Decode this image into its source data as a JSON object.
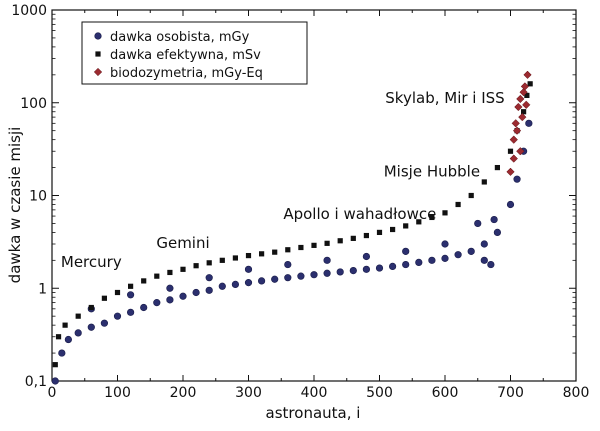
{
  "chart_data": {
    "type": "scatter",
    "xlabel": "astronauta, i",
    "ylabel": "dawka w czasie misji",
    "xlim": [
      0,
      800
    ],
    "ylim": [
      0.1,
      1000
    ],
    "yscale": "log",
    "grid": false,
    "legend_position": "top-left",
    "x_ticks": [
      0,
      100,
      200,
      300,
      400,
      500,
      600,
      700,
      800
    ],
    "x_tick_labels": [
      "0",
      "100",
      "200",
      "300",
      "400",
      "500",
      "600",
      "700",
      "800"
    ],
    "y_ticks": [
      0.1,
      1,
      10,
      100,
      1000
    ],
    "y_tick_labels": [
      "0,1",
      "1",
      "10",
      "100",
      "1000"
    ],
    "series": [
      {
        "name": "dawka osobista, mGy",
        "marker": "circle",
        "color": "#2b2f6e",
        "points": [
          [
            5,
            0.1
          ],
          [
            15,
            0.2
          ],
          [
            25,
            0.28
          ],
          [
            40,
            0.33
          ],
          [
            60,
            0.38
          ],
          [
            80,
            0.42
          ],
          [
            100,
            0.5
          ],
          [
            120,
            0.55
          ],
          [
            140,
            0.62
          ],
          [
            160,
            0.7
          ],
          [
            180,
            0.75
          ],
          [
            200,
            0.82
          ],
          [
            220,
            0.9
          ],
          [
            240,
            0.95
          ],
          [
            260,
            1.05
          ],
          [
            280,
            1.1
          ],
          [
            300,
            1.15
          ],
          [
            320,
            1.2
          ],
          [
            340,
            1.25
          ],
          [
            360,
            1.3
          ],
          [
            380,
            1.35
          ],
          [
            400,
            1.4
          ],
          [
            420,
            1.45
          ],
          [
            440,
            1.5
          ],
          [
            460,
            1.55
          ],
          [
            480,
            1.6
          ],
          [
            500,
            1.65
          ],
          [
            520,
            1.72
          ],
          [
            540,
            1.8
          ],
          [
            560,
            1.9
          ],
          [
            580,
            2.0
          ],
          [
            600,
            2.1
          ],
          [
            620,
            2.3
          ],
          [
            640,
            2.5
          ],
          [
            660,
            3.0
          ],
          [
            680,
            4.0
          ],
          [
            700,
            8.0
          ],
          [
            710,
            15.0
          ],
          [
            720,
            30.0
          ],
          [
            728,
            60.0
          ],
          [
            60,
            0.6
          ],
          [
            120,
            0.85
          ],
          [
            180,
            1.0
          ],
          [
            240,
            1.3
          ],
          [
            300,
            1.6
          ],
          [
            360,
            1.8
          ],
          [
            420,
            2.0
          ],
          [
            480,
            2.2
          ],
          [
            540,
            2.5
          ],
          [
            600,
            3.0
          ],
          [
            650,
            5.0
          ],
          [
            660,
            2.0
          ],
          [
            670,
            1.8
          ],
          [
            675,
            5.5
          ]
        ]
      },
      {
        "name": "dawka efektywna, mSv",
        "marker": "square",
        "color": "#111111",
        "points": [
          [
            5,
            0.15
          ],
          [
            10,
            0.3
          ],
          [
            20,
            0.4
          ],
          [
            40,
            0.5
          ],
          [
            60,
            0.62
          ],
          [
            80,
            0.78
          ],
          [
            100,
            0.9
          ],
          [
            120,
            1.05
          ],
          [
            140,
            1.2
          ],
          [
            160,
            1.35
          ],
          [
            180,
            1.48
          ],
          [
            200,
            1.6
          ],
          [
            220,
            1.75
          ],
          [
            240,
            1.88
          ],
          [
            260,
            2.0
          ],
          [
            280,
            2.12
          ],
          [
            300,
            2.25
          ],
          [
            320,
            2.35
          ],
          [
            340,
            2.45
          ],
          [
            360,
            2.6
          ],
          [
            380,
            2.75
          ],
          [
            400,
            2.9
          ],
          [
            420,
            3.05
          ],
          [
            440,
            3.25
          ],
          [
            460,
            3.45
          ],
          [
            480,
            3.7
          ],
          [
            500,
            4.0
          ],
          [
            520,
            4.3
          ],
          [
            540,
            4.7
          ],
          [
            560,
            5.2
          ],
          [
            580,
            5.8
          ],
          [
            600,
            6.5
          ],
          [
            620,
            8.0
          ],
          [
            640,
            10.0
          ],
          [
            660,
            14.0
          ],
          [
            680,
            20.0
          ],
          [
            700,
            30.0
          ],
          [
            710,
            50.0
          ],
          [
            720,
            80.0
          ],
          [
            725,
            120.0
          ],
          [
            730,
            160.0
          ]
        ]
      },
      {
        "name": "biodozymetria, mGy-Eq",
        "marker": "diamond",
        "color": "#9b2a30",
        "points": [
          [
            700,
            18.0
          ],
          [
            705,
            40.0
          ],
          [
            708,
            60.0
          ],
          [
            712,
            90.0
          ],
          [
            715,
            110.0
          ],
          [
            718,
            70.0
          ],
          [
            720,
            130.0
          ],
          [
            722,
            150.0
          ],
          [
            724,
            95.0
          ],
          [
            726,
            200.0
          ],
          [
            715,
            30.0
          ],
          [
            710,
            50.0
          ],
          [
            705,
            25.0
          ]
        ]
      }
    ],
    "annotations": [
      {
        "text": "Mercury",
        "x": 60,
        "y": 1.7
      },
      {
        "text": "Gemini",
        "x": 200,
        "y": 2.7
      },
      {
        "text": "Apollo i wahadłowce",
        "x": 470,
        "y": 5.6
      },
      {
        "text": "Misje Hubble",
        "x": 580,
        "y": 16
      },
      {
        "text": "Skylab, Mir i ISS",
        "x": 600,
        "y": 100
      }
    ]
  }
}
